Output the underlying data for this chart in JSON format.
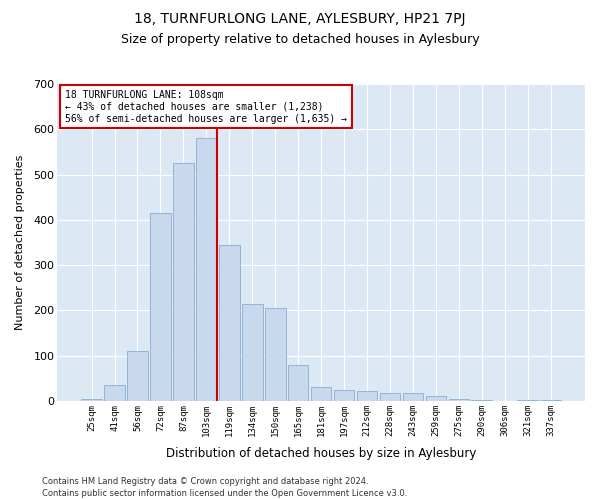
{
  "title": "18, TURNFURLONG LANE, AYLESBURY, HP21 7PJ",
  "subtitle": "Size of property relative to detached houses in Aylesbury",
  "xlabel": "Distribution of detached houses by size in Aylesbury",
  "ylabel": "Number of detached properties",
  "categories": [
    "25sqm",
    "41sqm",
    "56sqm",
    "72sqm",
    "87sqm",
    "103sqm",
    "119sqm",
    "134sqm",
    "150sqm",
    "165sqm",
    "181sqm",
    "197sqm",
    "212sqm",
    "228sqm",
    "243sqm",
    "259sqm",
    "275sqm",
    "290sqm",
    "306sqm",
    "321sqm",
    "337sqm"
  ],
  "bar_heights": [
    5,
    35,
    110,
    415,
    525,
    580,
    345,
    215,
    205,
    80,
    30,
    25,
    22,
    17,
    17,
    10,
    5,
    2,
    0,
    2,
    2
  ],
  "bar_color": "#c8d9ee",
  "bar_edge_color": "#8aadd4",
  "vline_color": "#cc0000",
  "vline_index": 5.47,
  "annotation_line1": "18 TURNFURLONG LANE: 108sqm",
  "annotation_line2": "← 43% of detached houses are smaller (1,238)",
  "annotation_line3": "56% of semi-detached houses are larger (1,635) →",
  "annotation_box_color": "white",
  "annotation_box_edge_color": "#cc0000",
  "ylim_max": 700,
  "yticks": [
    0,
    100,
    200,
    300,
    400,
    500,
    600,
    700
  ],
  "footer1": "Contains HM Land Registry data © Crown copyright and database right 2024.",
  "footer2": "Contains public sector information licensed under the Open Government Licence v3.0.",
  "bg_color": "#ffffff",
  "plot_bg_color": "#dde8f5",
  "grid_color": "#ffffff",
  "title_fontsize": 10,
  "subtitle_fontsize": 9
}
